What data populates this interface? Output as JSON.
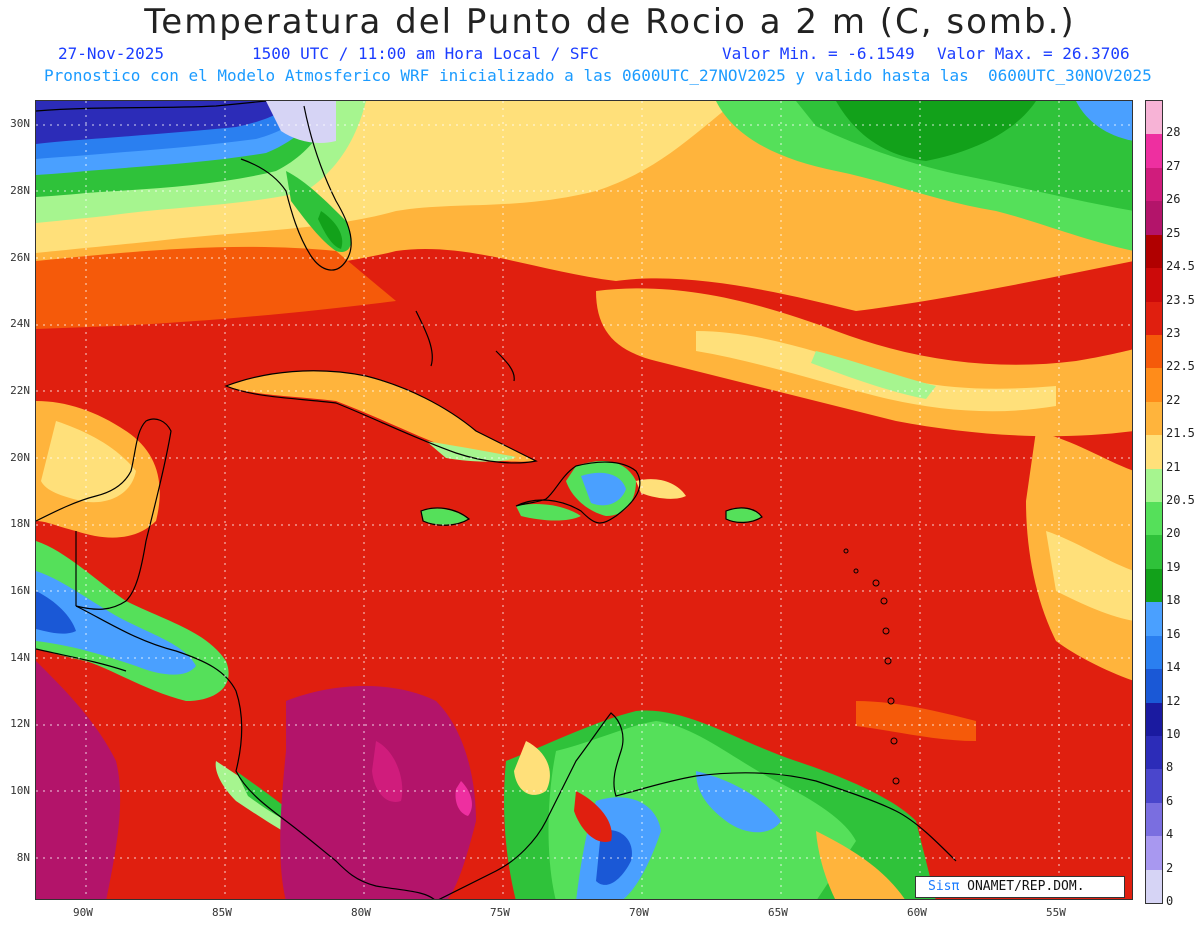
{
  "header": {
    "title": "Temperatura del Punto de Rocio a 2 m (C, somb.)",
    "date": "27-Nov-2025",
    "time": "1500 UTC / 11:00 am Hora Local / SFC",
    "min_value": "Valor Min. = -6.1549",
    "max_value": "Valor Max. = 26.3706",
    "model_info": "Pronostico con el Modelo Atmosferico WRF inicializado a las 0600UTC_27NOV2025 y valido hasta las  0600UTC_30NOV2025"
  },
  "axes": {
    "lat_labels": [
      "30N",
      "28N",
      "26N",
      "24N",
      "22N",
      "20N",
      "18N",
      "16N",
      "14N",
      "12N",
      "10N",
      "8N"
    ],
    "lon_labels": [
      "90W",
      "85W",
      "80W",
      "75W",
      "70W",
      "65W",
      "60W",
      "55W"
    ]
  },
  "colorbar": {
    "labels": [
      "28",
      "27",
      "26",
      "25",
      "24.5",
      "23.5",
      "23",
      "22.5",
      "22",
      "21.5",
      "21",
      "20.5",
      "20",
      "19",
      "18",
      "16",
      "14",
      "12",
      "10",
      "8",
      "6",
      "4",
      "2",
      "0"
    ],
    "colors": [
      "#f7b3d6",
      "#ee2fa0",
      "#d01c7c",
      "#b3146a",
      "#b00000",
      "#cc0a0a",
      "#e01f0f",
      "#f55a0a",
      "#ff8c1a",
      "#ffb43c",
      "#ffe07a",
      "#a6f58f",
      "#55e05a",
      "#2fc23a",
      "#12a11a",
      "#4aa0ff",
      "#2a7ff0",
      "#1a58d6",
      "#1a1aa0",
      "#2c2cb8",
      "#4a46cc",
      "#7a6ee0",
      "#a898f0",
      "#d6d4f5"
    ]
  },
  "legend": {
    "sis": "Sisπ",
    "org": " ONAMET/REP.DOM."
  }
}
